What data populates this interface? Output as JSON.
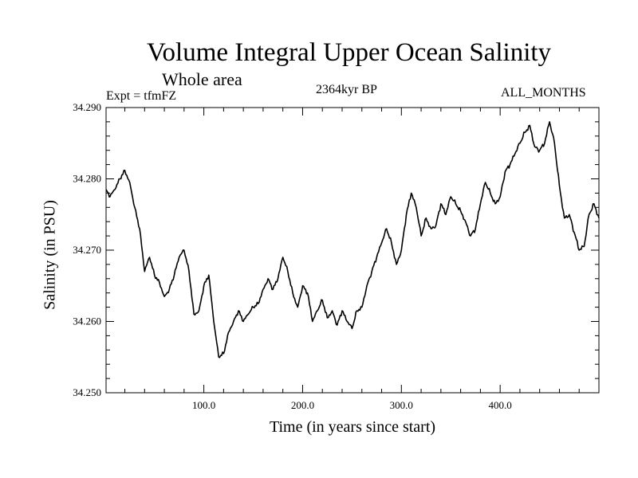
{
  "chart_data": {
    "type": "line",
    "title": "Volume Integral Upper Ocean Salinity",
    "subtitle": "Whole area",
    "experiment": "Expt = tfmFZ",
    "period": "2364kyr BP",
    "months": "ALL_MONTHS",
    "xlabel": "Time (in years since start)",
    "ylabel": "Salinity (in PSU)",
    "xlim": [
      1,
      500
    ],
    "ylim": [
      34.25,
      34.29
    ],
    "xticks": [
      100,
      200,
      300,
      400
    ],
    "xtick_labels": [
      "100.0",
      "200.0",
      "300.0",
      "400.0"
    ],
    "yticks": [
      34.25,
      34.26,
      34.27,
      34.28,
      34.29
    ],
    "ytick_labels": [
      "34.250",
      "34.260",
      "34.270",
      "34.280",
      "34.290"
    ],
    "series": [
      {
        "name": "Salinity",
        "x": [
          1,
          5,
          10,
          15,
          20,
          25,
          30,
          35,
          40,
          45,
          50,
          55,
          60,
          65,
          70,
          75,
          80,
          85,
          90,
          95,
          100,
          105,
          110,
          115,
          120,
          125,
          130,
          135,
          140,
          145,
          150,
          155,
          160,
          165,
          170,
          175,
          180,
          185,
          190,
          195,
          200,
          205,
          210,
          215,
          220,
          225,
          230,
          235,
          240,
          245,
          250,
          255,
          260,
          265,
          270,
          275,
          280,
          285,
          290,
          295,
          300,
          305,
          310,
          315,
          320,
          325,
          330,
          335,
          340,
          345,
          350,
          355,
          360,
          365,
          370,
          375,
          380,
          385,
          390,
          395,
          400,
          405,
          410,
          415,
          420,
          425,
          430,
          435,
          440,
          445,
          450,
          455,
          460,
          465,
          470,
          475,
          480,
          485,
          490,
          495,
          500
        ],
        "values": [
          34.2785,
          34.2775,
          34.2785,
          34.28,
          34.2812,
          34.2795,
          34.276,
          34.273,
          34.267,
          34.269,
          34.2665,
          34.2655,
          34.2635,
          34.2645,
          34.2665,
          34.269,
          34.27,
          34.267,
          34.261,
          34.2615,
          34.265,
          34.2665,
          34.26,
          34.255,
          34.2555,
          34.2585,
          34.26,
          34.2615,
          34.26,
          34.261,
          34.262,
          34.2625,
          34.2645,
          34.266,
          34.2645,
          34.266,
          34.269,
          34.267,
          34.264,
          34.262,
          34.265,
          34.264,
          34.26,
          34.2615,
          34.263,
          34.2605,
          34.2615,
          34.2595,
          34.2615,
          34.26,
          34.259,
          34.2615,
          34.262,
          34.265,
          34.267,
          34.269,
          34.271,
          34.273,
          34.271,
          34.268,
          34.27,
          34.275,
          34.278,
          34.276,
          34.272,
          34.2745,
          34.273,
          34.2735,
          34.2765,
          34.275,
          34.2775,
          34.2765,
          34.2755,
          34.274,
          34.272,
          34.273,
          34.2765,
          34.2795,
          34.278,
          34.2765,
          34.2775,
          34.281,
          34.282,
          34.2835,
          34.285,
          34.2865,
          34.2875,
          34.2845,
          34.284,
          34.285,
          34.288,
          34.285,
          34.279,
          34.2745,
          34.275,
          34.2725,
          34.27,
          34.2705,
          34.275,
          34.2765,
          34.2745
        ]
      }
    ]
  }
}
